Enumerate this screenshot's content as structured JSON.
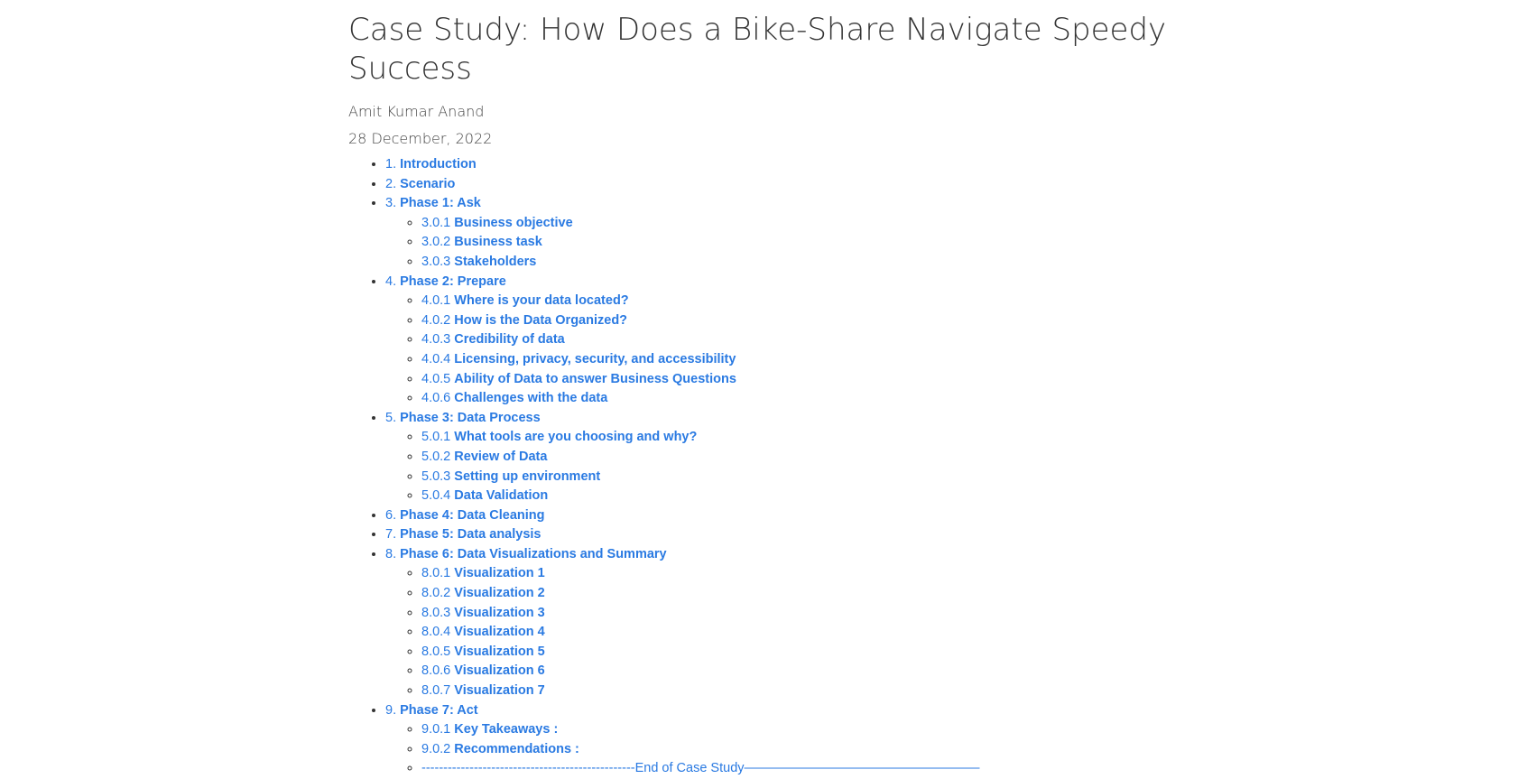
{
  "header": {
    "title": "Case Study: How Does a Bike-Share Navigate Speedy Success",
    "author": "Amit Kumar Anand",
    "date": "28 December, 2022"
  },
  "toc": [
    {
      "num": "1.",
      "title": "Introduction",
      "children": []
    },
    {
      "num": "2.",
      "title": "Scenario",
      "children": []
    },
    {
      "num": "3.",
      "title": "Phase 1: Ask",
      "children": [
        {
          "num": "3.0.1",
          "title": "Business objective"
        },
        {
          "num": "3.0.2",
          "title": "Business task"
        },
        {
          "num": "3.0.3",
          "title": "Stakeholders"
        }
      ]
    },
    {
      "num": "4.",
      "title": "Phase 2: Prepare",
      "children": [
        {
          "num": "4.0.1",
          "title": "Where is your data located?"
        },
        {
          "num": "4.0.2",
          "title": "How is the Data Organized?"
        },
        {
          "num": "4.0.3",
          "title": "Credibility of data"
        },
        {
          "num": "4.0.4",
          "title": "Licensing, privacy, security, and accessibility"
        },
        {
          "num": "4.0.5",
          "title": "Ability of Data to answer Business Questions"
        },
        {
          "num": "4.0.6",
          "title": "Challenges with the data"
        }
      ]
    },
    {
      "num": "5.",
      "title": "Phase 3: Data Process",
      "children": [
        {
          "num": "5.0.1",
          "title": "What tools are you choosing and why?"
        },
        {
          "num": "5.0.2",
          "title": "Review of Data"
        },
        {
          "num": "5.0.3",
          "title": "Setting up environment"
        },
        {
          "num": "5.0.4",
          "title": "Data Validation"
        }
      ]
    },
    {
      "num": "6.",
      "title": "Phase 4: Data Cleaning",
      "children": []
    },
    {
      "num": "7.",
      "title": "Phase 5: Data analysis",
      "children": []
    },
    {
      "num": "8.",
      "title": "Phase 6: Data Visualizations and Summary",
      "children": [
        {
          "num": "8.0.1",
          "title": "Visualization 1"
        },
        {
          "num": "8.0.2",
          "title": "Visualization 2"
        },
        {
          "num": "8.0.3",
          "title": "Visualization 3"
        },
        {
          "num": "8.0.4",
          "title": "Visualization 4"
        },
        {
          "num": "8.0.5",
          "title": "Visualization 5"
        },
        {
          "num": "8.0.6",
          "title": "Visualization 6"
        },
        {
          "num": "8.0.7",
          "title": "Visualization 7"
        }
      ]
    },
    {
      "num": "9.",
      "title": "Phase 7: Act",
      "children": [
        {
          "num": "9.0.1",
          "title": "Key Takeaways :"
        },
        {
          "num": "9.0.2",
          "title": "Recommendations :"
        },
        {
          "num": "",
          "title": "",
          "plain": "-------------------------------------------------End of Case Study——————————————————"
        }
      ]
    }
  ],
  "colors": {
    "link": "#2a7ae2",
    "text": "#333333"
  }
}
